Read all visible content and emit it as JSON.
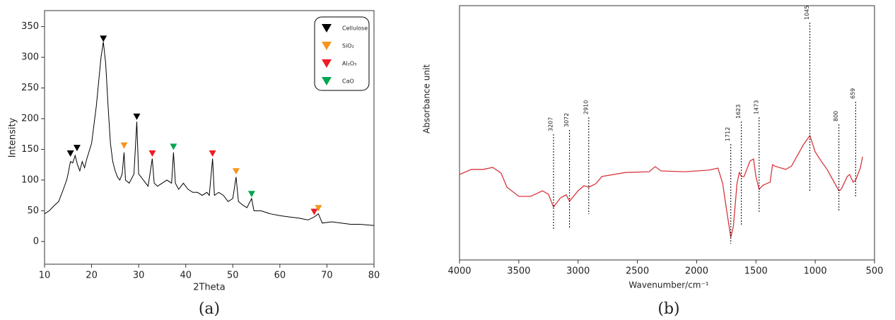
{
  "chart_data": [
    {
      "type": "line",
      "xlabel": "2Theta",
      "ylabel": "Intensity",
      "caption": "(a)",
      "xlim": [
        10,
        80
      ],
      "ylim": [
        -37,
        376
      ],
      "xticks": [
        10,
        20,
        30,
        40,
        50,
        60,
        70,
        80
      ],
      "yticks": [
        0,
        50,
        100,
        150,
        200,
        250,
        300,
        350
      ],
      "color": "#000000",
      "x": [
        10,
        11,
        12,
        13,
        14,
        14.7,
        15,
        15.5,
        16,
        16.5,
        17,
        17.5,
        18,
        18.5,
        19,
        20,
        21,
        22,
        22.5,
        23,
        23.5,
        24,
        24.5,
        25,
        25.5,
        26,
        26.5,
        26.9,
        27.2,
        28,
        29,
        29.6,
        30,
        31,
        32,
        32.9,
        33.3,
        34,
        35,
        36,
        37,
        37.4,
        37.8,
        38.5,
        39.5,
        40.5,
        41.5,
        42.5,
        43.5,
        44.5,
        45,
        45.7,
        46.1,
        47,
        48,
        49,
        50,
        50.7,
        51.2,
        52,
        53,
        54,
        54.5,
        56,
        58,
        60,
        62,
        64,
        66,
        67.3,
        68.2,
        69,
        71,
        73,
        75,
        77,
        80
      ],
      "values": [
        45,
        50,
        58,
        65,
        85,
        100,
        110,
        130,
        128,
        140,
        125,
        115,
        130,
        120,
        135,
        160,
        220,
        300,
        325,
        290,
        220,
        160,
        130,
        115,
        105,
        100,
        110,
        145,
        100,
        95,
        110,
        195,
        110,
        100,
        90,
        135,
        95,
        90,
        95,
        100,
        95,
        145,
        95,
        85,
        95,
        85,
        80,
        80,
        75,
        80,
        75,
        135,
        75,
        80,
        75,
        65,
        70,
        105,
        65,
        60,
        55,
        70,
        50,
        50,
        45,
        42,
        40,
        38,
        35,
        40,
        45,
        30,
        32,
        30,
        28,
        28,
        26
      ],
      "markers": [
        {
          "name": "Cellulose",
          "color": "#000000",
          "x": [
            15.5,
            16.9,
            22.5,
            29.6
          ],
          "values": [
            138,
            147,
            325,
            198
          ]
        },
        {
          "name": "SiO₂",
          "color": "#f7941d",
          "x": [
            26.9,
            50.7,
            68.2
          ],
          "values": [
            151,
            109,
            49
          ]
        },
        {
          "name": "Al₂O₃",
          "color": "#ee1c24",
          "x": [
            32.9,
            45.7,
            67.3
          ],
          "values": [
            138,
            138,
            43
          ]
        },
        {
          "name": "CaO",
          "color": "#00a651",
          "x": [
            37.4,
            54
          ],
          "values": [
            149,
            72
          ]
        }
      ]
    },
    {
      "type": "line",
      "xlabel": "Wavenumber/cm⁻¹",
      "ylabel": "Absorbance unit",
      "caption": "(b)",
      "xlim": [
        4000,
        500
      ],
      "ylim": [
        0,
        100
      ],
      "xticks": [
        4000,
        3500,
        3000,
        2500,
        2000,
        1500,
        1000,
        500
      ],
      "color": "#d9363e",
      "x": [
        4000,
        3900,
        3800,
        3720,
        3650,
        3600,
        3500,
        3400,
        3300,
        3250,
        3207,
        3150,
        3100,
        3072,
        3000,
        2950,
        2910,
        2850,
        2800,
        2600,
        2400,
        2350,
        2300,
        2100,
        1900,
        1820,
        1780,
        1750,
        1712,
        1690,
        1660,
        1640,
        1623,
        1600,
        1550,
        1520,
        1500,
        1473,
        1440,
        1380,
        1360,
        1340,
        1250,
        1200,
        1100,
        1045,
        1000,
        950,
        900,
        850,
        800,
        780,
        730,
        710,
        680,
        659,
        620,
        600
      ],
      "values": [
        33.6,
        35.6,
        35.6,
        36.4,
        34.2,
        28.6,
        25.0,
        25.0,
        27.2,
        25.8,
        20.8,
        24.4,
        25.6,
        23.1,
        27.2,
        29.2,
        28.6,
        30.0,
        32.8,
        34.4,
        34.7,
        36.7,
        35.0,
        34.7,
        35.3,
        36.1,
        30.0,
        20.3,
        8.9,
        13.3,
        30.0,
        34.4,
        32.8,
        32.8,
        38.9,
        39.7,
        32.8,
        27.8,
        29.4,
        30.6,
        37.5,
        36.9,
        35.6,
        36.9,
        45.3,
        48.9,
        42.5,
        38.9,
        35.6,
        31.4,
        27.2,
        27.8,
        32.8,
        33.6,
        30.6,
        31.4,
        36.1,
        40.6
      ],
      "peaks": [
        3207,
        3072,
        2910,
        1712,
        1623,
        1473,
        1045,
        800,
        659
      ]
    }
  ]
}
